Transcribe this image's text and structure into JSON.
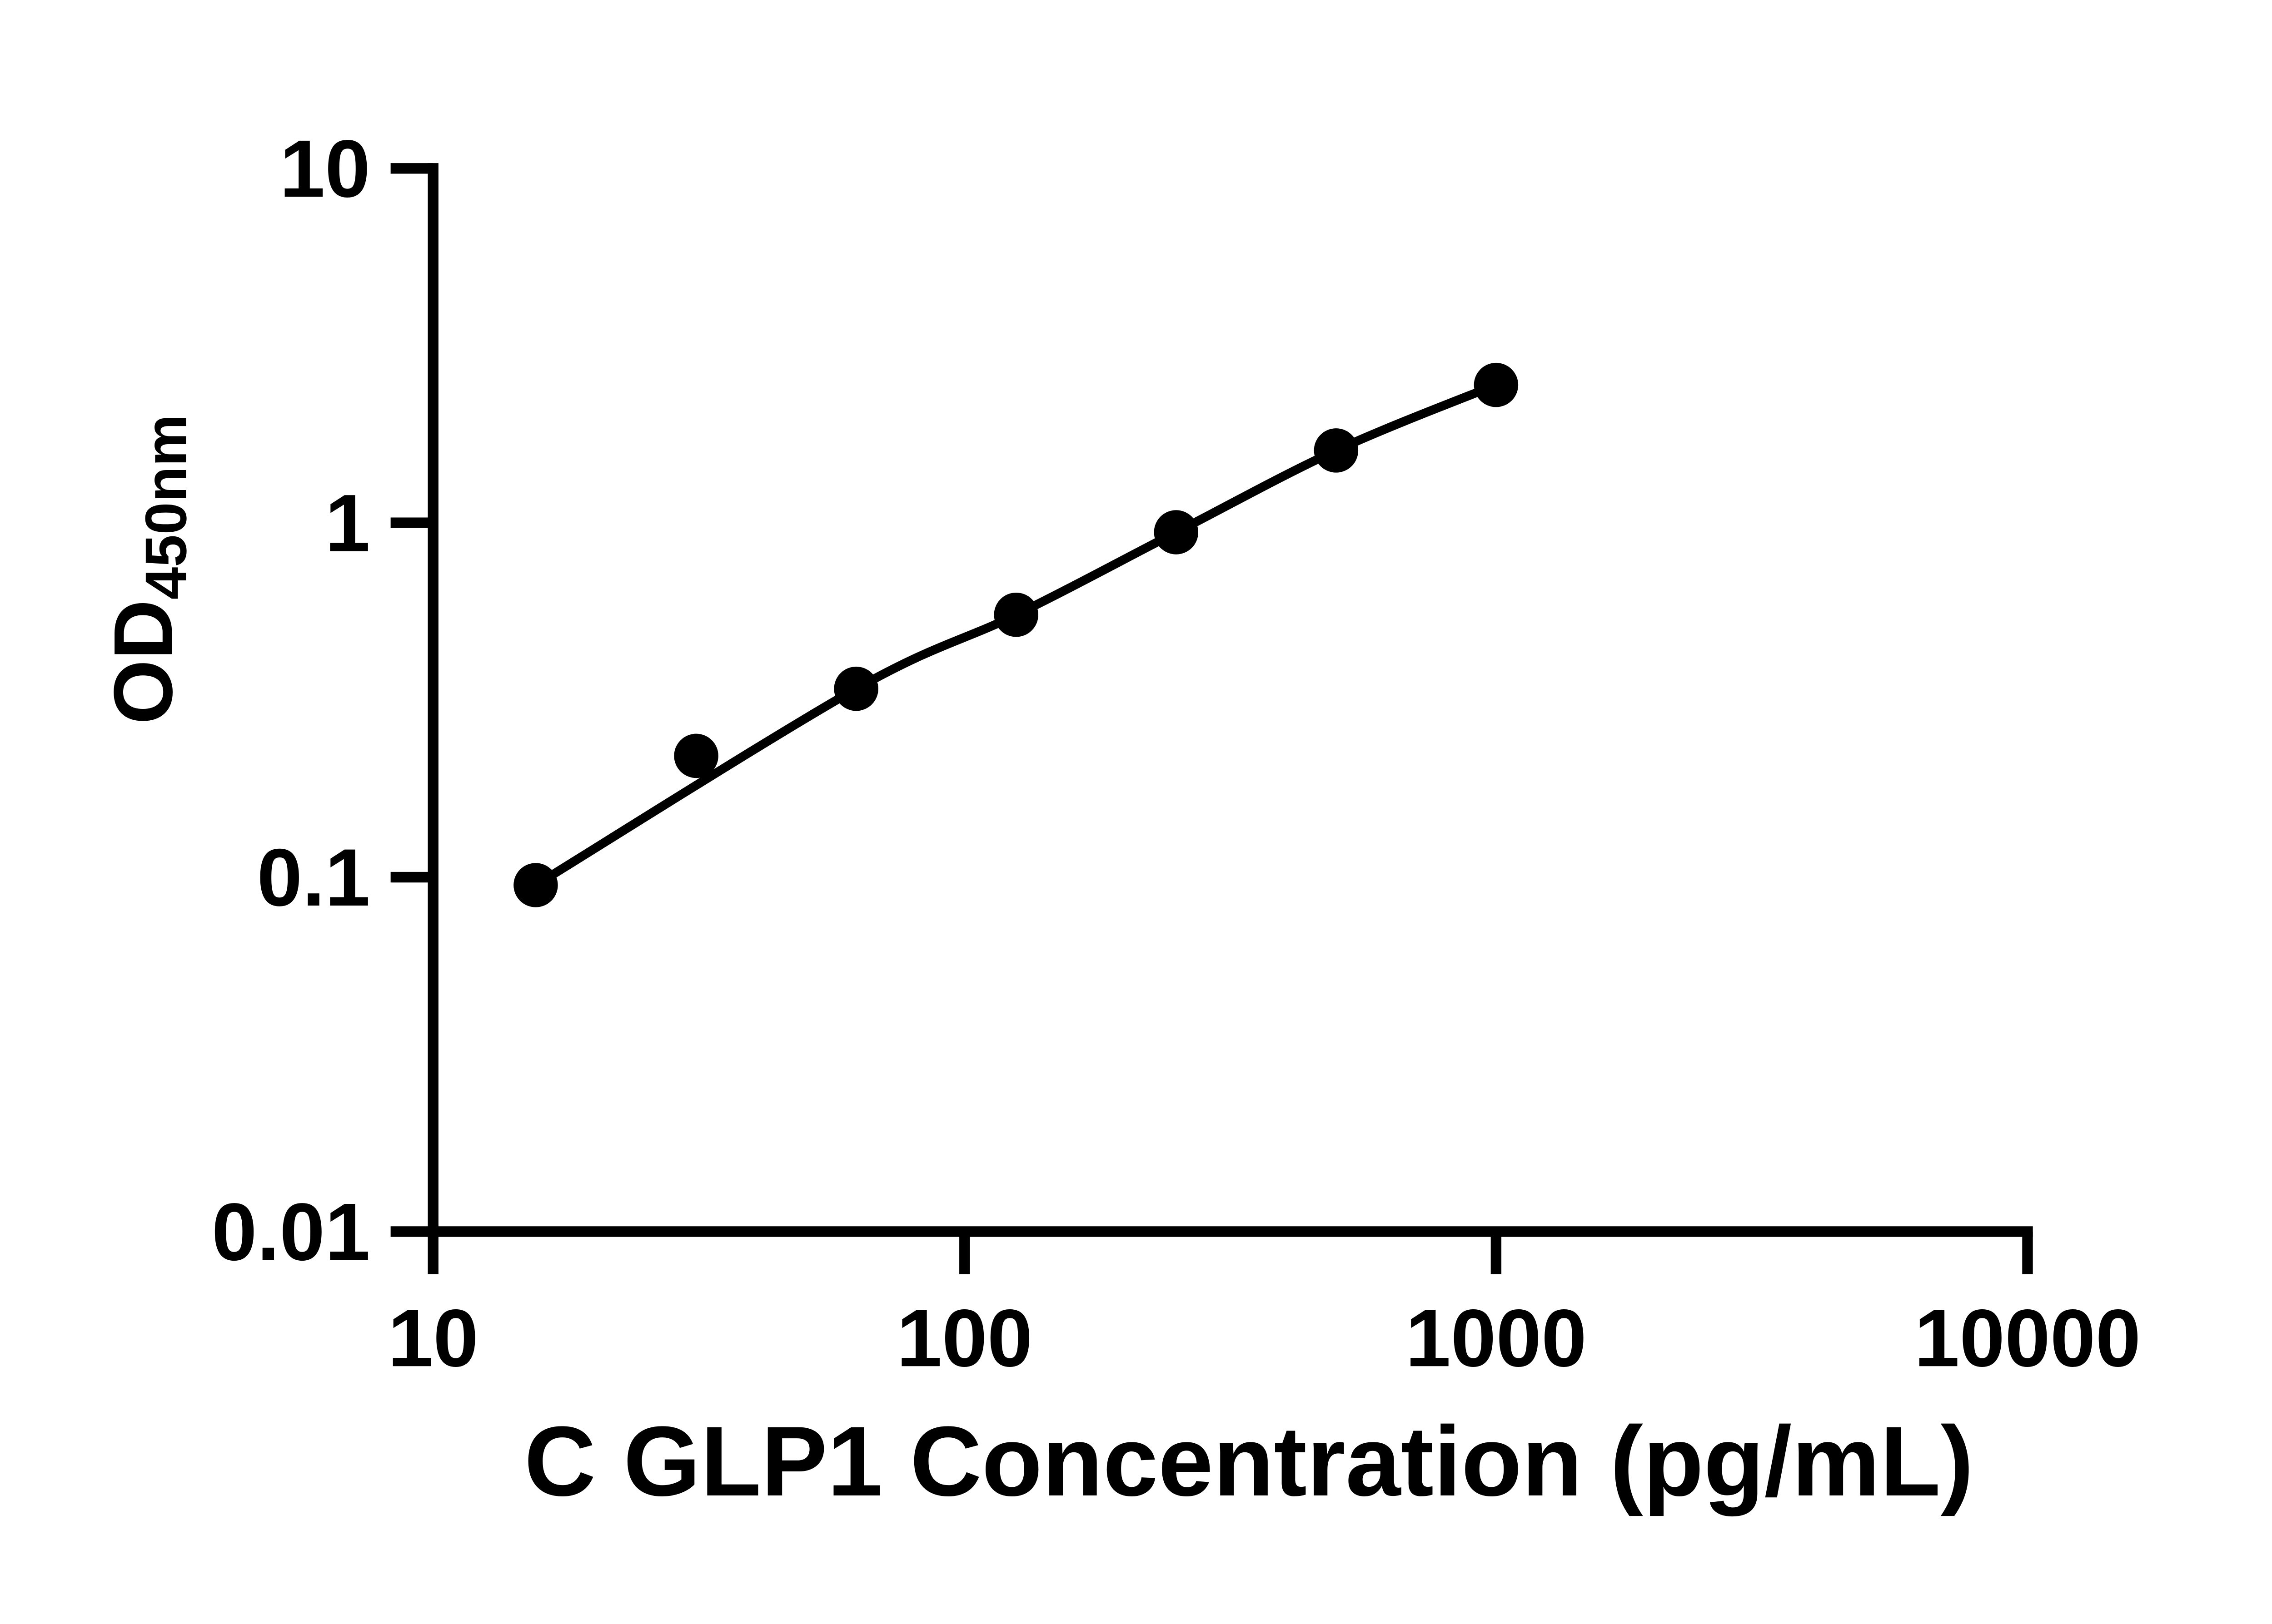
{
  "figure": {
    "background_color": "#ffffff",
    "ink_color": "#000000"
  },
  "chart_data": {
    "type": "scatter",
    "title": "",
    "xlabel": "C GLP1 Concentration (pg/mL)",
    "ylabel_main": "OD",
    "ylabel_sub": "450nm",
    "x_scale": "log",
    "y_scale": "log",
    "xlim": [
      10,
      10000
    ],
    "ylim": [
      0.01,
      10
    ],
    "x_ticks": [
      10,
      100,
      1000,
      10000
    ],
    "x_tick_labels": [
      "10",
      "100",
      "1000",
      "10000"
    ],
    "y_ticks": [
      10,
      1,
      0.1,
      0.01
    ],
    "y_tick_labels": [
      "10",
      "1",
      "0.1",
      "0.01"
    ],
    "x": [
      15.6,
      31.25,
      62.5,
      125,
      250,
      500,
      1000
    ],
    "y": [
      0.095,
      0.22,
      0.34,
      0.55,
      0.94,
      1.6,
      2.45
    ],
    "grid": false,
    "legend": "none",
    "marker": "filled-circle",
    "marker_color": "#000000",
    "line": "trend-line-through-points",
    "line_color": "#000000"
  }
}
